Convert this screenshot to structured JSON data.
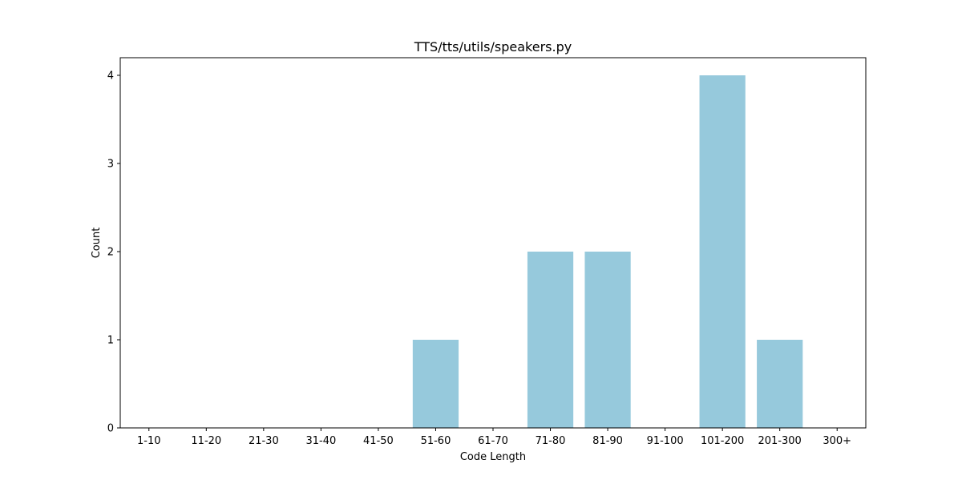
{
  "chart_data": {
    "type": "bar",
    "title": "TTS/tts/utils/speakers.py",
    "xlabel": "Code Length",
    "ylabel": "Count",
    "categories": [
      "1-10",
      "11-20",
      "21-30",
      "31-40",
      "41-50",
      "51-60",
      "61-70",
      "71-80",
      "81-90",
      "91-100",
      "101-200",
      "201-300",
      "300+"
    ],
    "values": [
      0,
      0,
      0,
      0,
      0,
      1,
      0,
      2,
      2,
      0,
      4,
      1,
      0
    ],
    "ylim": [
      0,
      4.2
    ],
    "yticks": [
      0,
      1,
      2,
      3,
      4
    ],
    "grid": false,
    "bar_color": "#96c9dc"
  }
}
